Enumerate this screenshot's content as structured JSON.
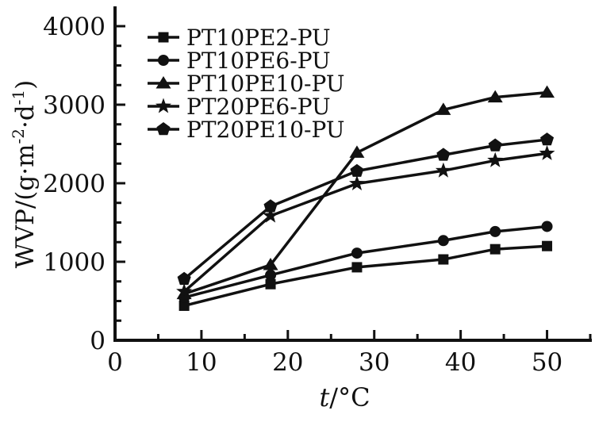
{
  "chart_data": {
    "type": "line",
    "title": "",
    "xlabel": "t/°C",
    "ylabel": "WVP/(g·m⁻²·d⁻¹)",
    "x": [
      8,
      18,
      28,
      38,
      44,
      50
    ],
    "series": [
      {
        "name": "PT10PE2-PU",
        "marker": "square",
        "values": [
          440,
          715,
          930,
          1030,
          1160,
          1200
        ]
      },
      {
        "name": "PT10PE6-PU",
        "marker": "circle",
        "values": [
          545,
          830,
          1110,
          1270,
          1385,
          1450
        ]
      },
      {
        "name": "PT10PE10-PU",
        "marker": "triangle",
        "values": [
          590,
          960,
          2390,
          2935,
          3095,
          3155
        ]
      },
      {
        "name": "PT20PE6-PU",
        "marker": "star",
        "values": [
          620,
          1585,
          1995,
          2160,
          2290,
          2380
        ]
      },
      {
        "name": "PT20PE10-PU",
        "marker": "pentagon",
        "values": [
          780,
          1705,
          2155,
          2360,
          2480,
          2555
        ]
      }
    ],
    "xticks": [
      0,
      10,
      20,
      30,
      40,
      50
    ],
    "yticks": [
      0,
      1000,
      2000,
      3000,
      4000
    ],
    "xlim": [
      0,
      55
    ],
    "ylim": [
      0,
      4250
    ],
    "minor_x_step": 5,
    "minor_y_step": 250,
    "grid": false,
    "legend_position": "top-left-inside",
    "line_color": "#111111",
    "background": "#ffffff"
  }
}
